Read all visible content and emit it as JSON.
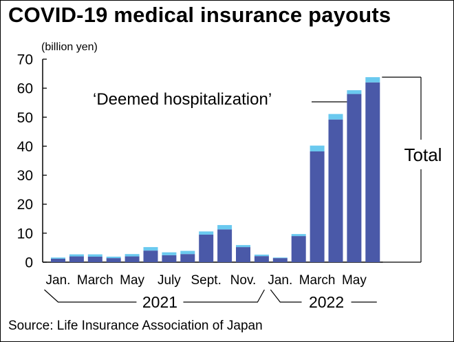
{
  "chart_data": {
    "type": "bar",
    "stacked": true,
    "title": "COVID-19 medical insurance payouts",
    "unit_label": "(billion yen)",
    "source": "Source: Life Insurance Association of Japan",
    "ylim": [
      0,
      70
    ],
    "yticks": [
      0,
      10,
      20,
      30,
      40,
      50,
      60,
      70
    ],
    "categories": [
      "Jan. 2021",
      "Feb. 2021",
      "March 2021",
      "Apr. 2021",
      "May 2021",
      "June 2021",
      "July 2021",
      "Aug. 2021",
      "Sept. 2021",
      "Oct. 2021",
      "Nov. 2021",
      "Dec. 2021",
      "Jan. 2022",
      "Feb. 2022",
      "March 2022",
      "Apr. 2022",
      "May 2022",
      "June 2022"
    ],
    "tick_labels": [
      "Jan.",
      "",
      "March",
      "",
      "May",
      "",
      "July",
      "",
      "Sept.",
      "",
      "Nov.",
      "",
      "Jan.",
      "",
      "March",
      "",
      "May",
      ""
    ],
    "years": [
      {
        "label": "2021",
        "from": 0,
        "to": 11
      },
      {
        "label": "2022",
        "from": 12,
        "to": 17
      }
    ],
    "series": [
      {
        "color": "#4a59a8",
        "values": [
          1.2,
          2.0,
          1.9,
          1.4,
          2.0,
          4.0,
          2.4,
          2.8,
          9.5,
          11.3,
          5.2,
          2.1,
          1.4,
          9.0,
          38.2,
          49.2,
          58.0,
          62.0
        ]
      },
      {
        "color": "#6ac9ef",
        "values": [
          0.4,
          0.7,
          0.8,
          0.5,
          0.8,
          1.2,
          1.0,
          1.1,
          1.1,
          1.5,
          0.7,
          0.5,
          0.2,
          0.7,
          2.0,
          1.9,
          1.3,
          1.8
        ]
      }
    ],
    "annotations": {
      "deemed_label": "‘Deemed hospitalization’",
      "total_label": "Total"
    }
  }
}
